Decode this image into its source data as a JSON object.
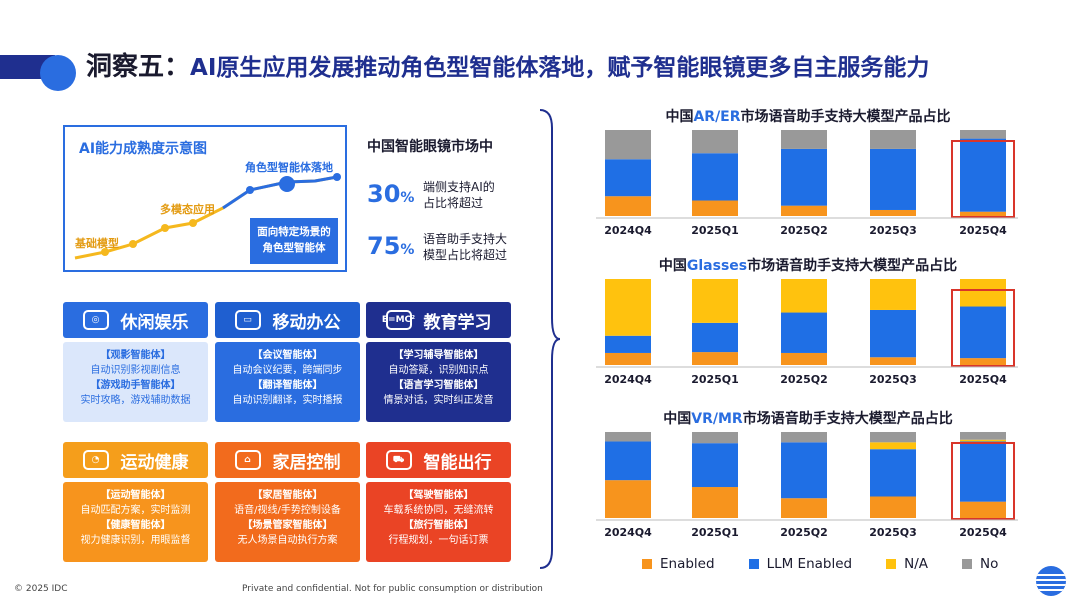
{
  "header": {
    "lead": "洞察五：",
    "title": "AI原生应用发展推动角色型智能体落地，赋予智能眼镜更多自主服务能力"
  },
  "maturity": {
    "title": "AI能力成熟度示意图",
    "stages": [
      "基础模型",
      "多模态应用",
      "角色型智能体落地"
    ],
    "callout_line1": "面向特定场景的",
    "callout_line2": "角色型智能体"
  },
  "stats": {
    "heading": "中国智能眼镜市场中",
    "items": [
      {
        "value": "30",
        "unit": "%",
        "line1": "端侧支持AI的",
        "line2": "占比将超过"
      },
      {
        "value": "75",
        "unit": "%",
        "line1": "语音助手支持大",
        "line2": "模型占比将超过"
      }
    ]
  },
  "cards": [
    {
      "label": "休闲娱乐",
      "icon": "gamepad-icon",
      "color": "#2a6de0",
      "body_color": "#dbe7fb",
      "text_color": "#2a6de0",
      "t1": "【观影智能体】",
      "d1": "自动识别影视剧信息",
      "t2": "【游戏助手智能体】",
      "d2": "实时攻略，游戏辅助数据"
    },
    {
      "label": "移动办公",
      "icon": "laptop-icon",
      "color": "#1f5fd0",
      "body_color": "#2a6de0",
      "text_color": "#ffffff",
      "t1": "【会议智能体】",
      "d1": "自动会议纪要，跨端同步",
      "t2": "【翻译智能体】",
      "d2": "自动识别翻译，实时播报"
    },
    {
      "label": "教育学习",
      "icon": "blackboard-icon",
      "color": "#1f2f8f",
      "body_color": "#1f2f8f",
      "text_color": "#ffffff",
      "t1": "【学习辅导智能体】",
      "d1": "自动答疑，识别知识点",
      "t2": "【语言学习智能体】",
      "d2": "情景对话，实时纠正发音"
    },
    {
      "label": "运动健康",
      "icon": "glasses-icon",
      "color": "#f59e1b",
      "body_color": "#f7941d",
      "text_color": "#ffffff",
      "t1": "【运动智能体】",
      "d1": "自动匹配方案，实时监测",
      "t2": "【健康智能体】",
      "d2": "视力健康识别，用眼监督"
    },
    {
      "label": "家居控制",
      "icon": "home-control-icon",
      "color": "#f26b1d",
      "body_color": "#f26b1d",
      "text_color": "#ffffff",
      "t1": "【家居智能体】",
      "d1": "语音/视线/手势控制设备",
      "t2": "【场景管家智能体】",
      "d2": "无人场景自动执行方案"
    },
    {
      "label": "智能出行",
      "icon": "car-icon",
      "color": "#ea4425",
      "body_color": "#ea4425",
      "text_color": "#ffffff",
      "t1": "【驾驶智能体】",
      "d1": "车载系统协同，无缝流转",
      "t2": "【旅行智能体】",
      "d2": "行程规划，一句话订票"
    }
  ],
  "chart_data": [
    {
      "type": "bar",
      "stacked": true,
      "title_prefix": "中国",
      "title_highlight": "AR/ER",
      "title_suffix": "市场语音助手支持大模型产品占比",
      "categories": [
        "2024Q4",
        "2025Q1",
        "2025Q2",
        "2025Q3",
        "2025Q4"
      ],
      "series": [
        {
          "name": "Enabled",
          "values": [
            0.23,
            0.18,
            0.12,
            0.07,
            0.05
          ]
        },
        {
          "name": "LLM Enabled",
          "values": [
            0.43,
            0.55,
            0.66,
            0.71,
            0.85
          ]
        },
        {
          "name": "N/A",
          "values": [
            0,
            0,
            0,
            0,
            0
          ]
        },
        {
          "name": "No",
          "values": [
            0.34,
            0.27,
            0.22,
            0.22,
            0.1
          ]
        }
      ],
      "highlight": "2025Q4",
      "ylim": [
        0,
        1
      ]
    },
    {
      "type": "bar",
      "stacked": true,
      "title_prefix": "中国",
      "title_highlight": "Glasses",
      "title_suffix": "市场语音助手支持大模型产品占比",
      "categories": [
        "2024Q4",
        "2025Q1",
        "2025Q2",
        "2025Q3",
        "2025Q4"
      ],
      "series": [
        {
          "name": "Enabled",
          "values": [
            0.14,
            0.15,
            0.14,
            0.09,
            0.08
          ]
        },
        {
          "name": "LLM Enabled",
          "values": [
            0.2,
            0.34,
            0.47,
            0.55,
            0.6
          ]
        },
        {
          "name": "N/A",
          "values": [
            0.66,
            0.51,
            0.39,
            0.36,
            0.32
          ]
        },
        {
          "name": "No",
          "values": [
            0,
            0,
            0,
            0,
            0
          ]
        }
      ],
      "highlight": "2025Q4",
      "ylim": [
        0,
        1
      ]
    },
    {
      "type": "bar",
      "stacked": true,
      "title_prefix": "中国",
      "title_highlight": "VR/MR",
      "title_suffix": "市场语音助手支持大模型产品占比",
      "categories": [
        "2024Q4",
        "2025Q1",
        "2025Q2",
        "2025Q3",
        "2025Q4"
      ],
      "series": [
        {
          "name": "Enabled",
          "values": [
            0.44,
            0.36,
            0.23,
            0.25,
            0.19
          ]
        },
        {
          "name": "LLM Enabled",
          "values": [
            0.45,
            0.51,
            0.65,
            0.55,
            0.7
          ]
        },
        {
          "name": "N/A",
          "values": [
            0,
            0,
            0,
            0.08,
            0.02
          ]
        },
        {
          "name": "No",
          "values": [
            0.11,
            0.13,
            0.12,
            0.12,
            0.09
          ]
        }
      ],
      "highlight": "2025Q4",
      "ylim": [
        0,
        1
      ]
    }
  ],
  "legend": [
    {
      "label": "Enabled",
      "color": "#f7941d"
    },
    {
      "label": "LLM Enabled",
      "color": "#1f6fe5"
    },
    {
      "label": "N/A",
      "color": "#ffc20e"
    },
    {
      "label": "No",
      "color": "#999999"
    }
  ],
  "footer": {
    "copyright": "© 2025 IDC",
    "notice": "Private and confidential. Not for public consumption or distribution"
  }
}
